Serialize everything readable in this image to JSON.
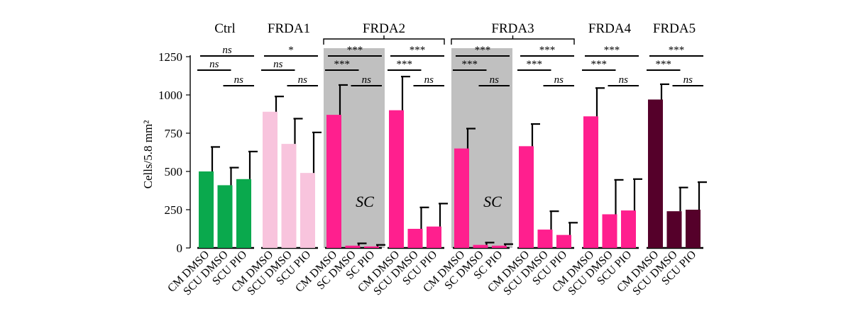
{
  "chart_data": {
    "type": "bar",
    "ylabel": "Cells/5.8 mm²",
    "ylim": [
      0,
      1250
    ],
    "yticks": [
      0,
      250,
      500,
      750,
      1000,
      1250
    ],
    "grid": false,
    "error_bars": "positive",
    "shading_label": "SC",
    "groups": [
      {
        "name": "Ctrl",
        "color": "#0aa94d",
        "shaded": false,
        "bracket": false,
        "categories": [
          "CM DMSO",
          "SCU DMSO",
          "SCU PIO"
        ],
        "values": [
          500,
          410,
          450
        ],
        "errors": [
          160,
          115,
          180
        ],
        "comparisons": [
          {
            "level": 0,
            "from": 0,
            "to": 2,
            "label": "ns"
          },
          {
            "level": 1,
            "from": 0,
            "to": 1,
            "label": "ns"
          },
          {
            "level": 2,
            "from": 1,
            "to": 2,
            "label": "ns"
          }
        ]
      },
      {
        "name": "FRDA1",
        "color": "#f8c4dd",
        "shaded": false,
        "bracket": false,
        "categories": [
          "CM DMSO",
          "SCU DMSO",
          "SCU PIO"
        ],
        "values": [
          890,
          680,
          490
        ],
        "errors": [
          100,
          165,
          265
        ],
        "comparisons": [
          {
            "level": 0,
            "from": 0,
            "to": 2,
            "label": "*"
          },
          {
            "level": 1,
            "from": 0,
            "to": 1,
            "label": "ns"
          },
          {
            "level": 2,
            "from": 1,
            "to": 2,
            "label": "ns"
          }
        ]
      },
      {
        "name": "FRDA2",
        "color": "#ff1f8e",
        "shaded": true,
        "bracket": true,
        "categories": [
          "CM DMSO",
          "SC DMSO",
          "SC PIO"
        ],
        "values": [
          870,
          15,
          10
        ],
        "errors": [
          195,
          15,
          10
        ],
        "comparisons": [
          {
            "level": 0,
            "from": 0,
            "to": 2,
            "label": "***"
          },
          {
            "level": 1,
            "from": 0,
            "to": 1,
            "label": "***"
          },
          {
            "level": 2,
            "from": 1,
            "to": 2,
            "label": "ns"
          }
        ]
      },
      {
        "name": "FRDA2",
        "color": "#ff1f8e",
        "shaded": false,
        "bracket": true,
        "categories": [
          "CM DMSO",
          "SCU DMSO",
          "SCU PIO"
        ],
        "values": [
          900,
          125,
          140
        ],
        "errors": [
          220,
          140,
          150
        ],
        "comparisons": [
          {
            "level": 0,
            "from": 0,
            "to": 2,
            "label": "***"
          },
          {
            "level": 1,
            "from": 0,
            "to": 1,
            "label": "***"
          },
          {
            "level": 2,
            "from": 1,
            "to": 2,
            "label": "ns"
          }
        ]
      },
      {
        "name": "FRDA3",
        "color": "#ff1f8e",
        "shaded": true,
        "bracket": true,
        "categories": [
          "CM DMSO",
          "SC DMSO",
          "SC PIO"
        ],
        "values": [
          650,
          20,
          15
        ],
        "errors": [
          130,
          15,
          10
        ],
        "comparisons": [
          {
            "level": 0,
            "from": 0,
            "to": 2,
            "label": "***"
          },
          {
            "level": 1,
            "from": 0,
            "to": 1,
            "label": "***"
          },
          {
            "level": 2,
            "from": 1,
            "to": 2,
            "label": "ns"
          }
        ]
      },
      {
        "name": "FRDA3",
        "color": "#ff1f8e",
        "shaded": false,
        "bracket": true,
        "categories": [
          "CM DMSO",
          "SCU DMSO",
          "SCU PIO"
        ],
        "values": [
          665,
          120,
          85
        ],
        "errors": [
          145,
          120,
          80
        ],
        "comparisons": [
          {
            "level": 0,
            "from": 0,
            "to": 2,
            "label": "***"
          },
          {
            "level": 1,
            "from": 0,
            "to": 1,
            "label": "***"
          },
          {
            "level": 2,
            "from": 1,
            "to": 2,
            "label": "ns"
          }
        ]
      },
      {
        "name": "FRDA4",
        "color": "#ff1f8e",
        "shaded": false,
        "bracket": false,
        "categories": [
          "CM DMSO",
          "SCU DMSO",
          "SCU PIO"
        ],
        "values": [
          860,
          220,
          245
        ],
        "errors": [
          185,
          225,
          205
        ],
        "comparisons": [
          {
            "level": 0,
            "from": 0,
            "to": 2,
            "label": "***"
          },
          {
            "level": 1,
            "from": 0,
            "to": 1,
            "label": "***"
          },
          {
            "level": 2,
            "from": 1,
            "to": 2,
            "label": "ns"
          }
        ]
      },
      {
        "name": "FRDA5",
        "color": "#55002a",
        "shaded": false,
        "bracket": false,
        "categories": [
          "CM DMSO",
          "SCU DMSO",
          "SCU PIO"
        ],
        "values": [
          970,
          240,
          250
        ],
        "errors": [
          100,
          155,
          180
        ],
        "comparisons": [
          {
            "level": 0,
            "from": 0,
            "to": 2,
            "label": "***"
          },
          {
            "level": 1,
            "from": 0,
            "to": 1,
            "label": "***"
          },
          {
            "level": 2,
            "from": 1,
            "to": 2,
            "label": "ns"
          }
        ]
      }
    ]
  }
}
